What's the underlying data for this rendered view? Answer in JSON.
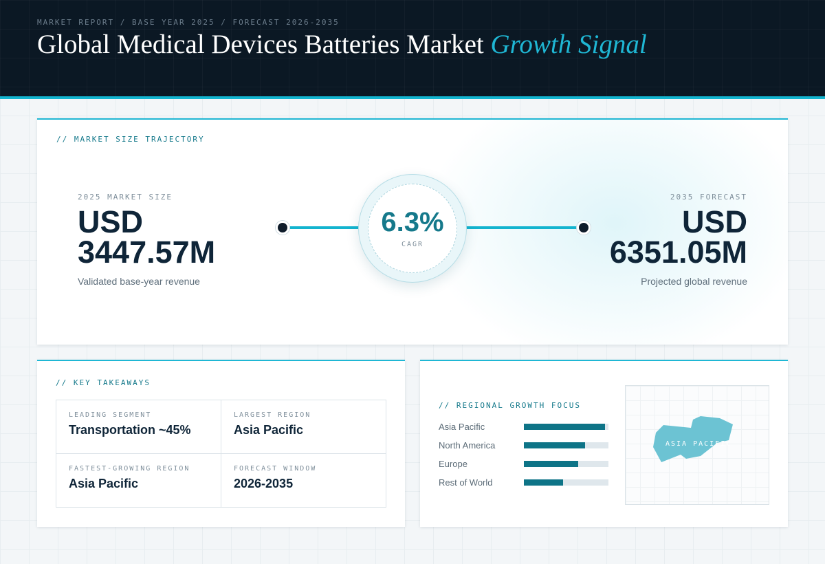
{
  "header": {
    "kicker": "MARKET REPORT / BASE YEAR 2025 / FORECAST 2026-2035",
    "title_main": "Global Medical Devices Batteries Market",
    "title_accent": "Growth Signal"
  },
  "trajectory": {
    "section_label": "// MARKET SIZE TRAJECTORY",
    "base": {
      "label": "2025 MARKET SIZE",
      "currency": "USD",
      "amount": "3447.57M",
      "sub": "Validated base-year revenue"
    },
    "forecast": {
      "label": "2035 FORECAST",
      "currency": "USD",
      "amount": "6351.05M",
      "sub": "Projected global revenue"
    },
    "cagr": {
      "value": "6.3%",
      "label": "CAGR"
    }
  },
  "takeaways": {
    "section_label": "// KEY TAKEAWAYS",
    "items": [
      {
        "label": "LEADING SEGMENT",
        "value": "Transportation ~45%"
      },
      {
        "label": "LARGEST REGION",
        "value": "Asia Pacific"
      },
      {
        "label": "FASTEST-GROWING REGION",
        "value": "Asia Pacific"
      },
      {
        "label": "FORECAST WINDOW",
        "value": "2026-2035"
      }
    ]
  },
  "regional": {
    "section_label": "// REGIONAL GROWTH FOCUS",
    "regions": [
      {
        "name": "Asia Pacific",
        "level": 0.96
      },
      {
        "name": "North America",
        "level": 0.72
      },
      {
        "name": "Europe",
        "level": 0.64
      },
      {
        "name": "Rest of World",
        "level": 0.46
      }
    ],
    "map_label": "ASIA PACIFIC"
  },
  "colors": {
    "accent": "#1fb7d4",
    "bar_fill": "#0e7487",
    "header_bg": "#0b1824",
    "map_highlight": "#6cc3d3"
  }
}
